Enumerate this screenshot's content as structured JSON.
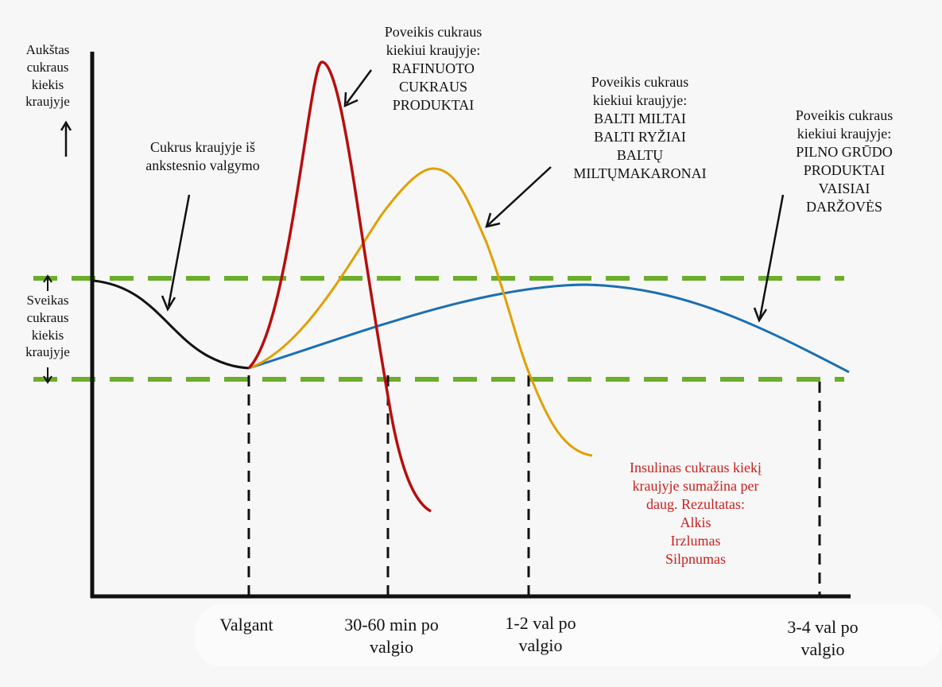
{
  "y_axis": {
    "high_label": [
      "Aukštas",
      "cukraus",
      "kiekis",
      "kraujyje"
    ],
    "healthy_label": [
      "Sveikas",
      "cukraus",
      "kiekis",
      "kraujyje"
    ]
  },
  "annotations": {
    "previous_meal": [
      "Cukrus kraujyje iš",
      "ankstesnio valgymo"
    ],
    "refined": [
      "Poveikis cukraus",
      "kiekiui kraujyje:",
      "RAFINUOTO",
      "CUKRAUS",
      "PRODUKTAI"
    ],
    "white_flour": [
      "Poveikis cukraus",
      "kiekiui kraujyje:",
      "BALTI MILTAI",
      "BALTI RYŽIAI",
      "BALTŲ",
      "MILTŲMAKARONAI"
    ],
    "whole_grain": [
      "Poveikis cukraus",
      "kiekiui kraujyje:",
      "PILNO GRŪDO",
      "PRODUKTAI",
      "VAISIAI",
      "DARŽOVĖS"
    ],
    "insulin": [
      "Insulinas cukraus kiekį",
      "kraujyje sumažina per",
      "daug. Rezultatas:",
      "Alkis",
      "Irzlumas",
      "Silpnumas"
    ]
  },
  "x_axis": {
    "labels": [
      [
        "Valgant"
      ],
      [
        "30-60 min po",
        "valgio"
      ],
      [
        "1-2 val po",
        "valgio"
      ],
      [
        "3-4 val po",
        "valgio"
      ]
    ]
  },
  "colors": {
    "axis": "#111111",
    "healthy_band": "#6aae2a",
    "previous_meal_curve": "#111111",
    "refined_curve": "#b80d0d",
    "white_flour_curve": "#e0a000",
    "whole_grain_curve": "#1a6fb3",
    "insulin_text": "#c8201e",
    "background": "#f7f7f7"
  }
}
